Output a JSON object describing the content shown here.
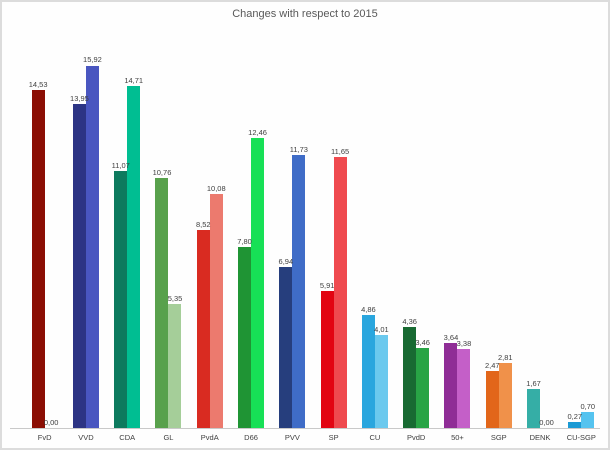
{
  "title": "Changes with respect to 2015",
  "colors": {
    "background": "#fefefe",
    "border": "#dcdcdc",
    "title_text": "#595959",
    "value_label_text": "#3f3f3f",
    "axis_line": "#c9c9c9",
    "x_label_text": "#404040"
  },
  "chart_data": {
    "type": "bar",
    "title": "Changes with respect to 2015",
    "xlabel": "",
    "ylabel": "",
    "ylim": [
      0,
      16
    ],
    "grid": false,
    "legend_position": "none",
    "decimal_separator": ",",
    "categories": [
      "FvD",
      "VVD",
      "CDA",
      "GL",
      "PvdA",
      "D66",
      "PVV",
      "SP",
      "CU",
      "PvdD",
      "50+",
      "SGP",
      "DENK",
      "CU-SGP"
    ],
    "series": [
      {
        "name": "bar-left",
        "values": [
          14.53,
          13.95,
          11.07,
          10.76,
          8.52,
          7.8,
          6.94,
          5.91,
          4.86,
          4.36,
          3.64,
          2.47,
          1.67,
          0.27
        ],
        "labels": [
          "14,53",
          "13,95",
          "11,07",
          "10,76",
          "8,52",
          "7,80",
          "6,94",
          "5,91",
          "4,86",
          "4,36",
          "3,64",
          "2,47",
          "1,67",
          "0,27"
        ],
        "colors": [
          "#8b0e04",
          "#2c3484",
          "#0d7a5e",
          "#58a14c",
          "#d92b21",
          "#1f9434",
          "#263e7d",
          "#e20512",
          "#2aa6de",
          "#186a32",
          "#8f2d96",
          "#e2661a",
          "#35aea6",
          "#1b9ad4"
        ]
      },
      {
        "name": "bar-right",
        "values": [
          0.0,
          15.92,
          14.71,
          5.35,
          10.08,
          12.46,
          11.73,
          11.65,
          4.01,
          3.46,
          3.38,
          2.81,
          0.0,
          0.7
        ],
        "labels": [
          "0,00",
          "15,92",
          "14,71",
          "5,35",
          "10,08",
          "12,46",
          "11,73",
          "11,65",
          "4,01",
          "3,46",
          "3,38",
          "2,81",
          "0,00",
          "0,70"
        ],
        "colors": [
          "#c0392b",
          "#4956c0",
          "#00be92",
          "#a5ce99",
          "#ec7a6e",
          "#17e056",
          "#3f6cc7",
          "#ef4a4f",
          "#6bc9ee",
          "#28a445",
          "#c45fc8",
          "#f0914a",
          "#7fd4ce",
          "#55c3ef"
        ]
      }
    ]
  }
}
